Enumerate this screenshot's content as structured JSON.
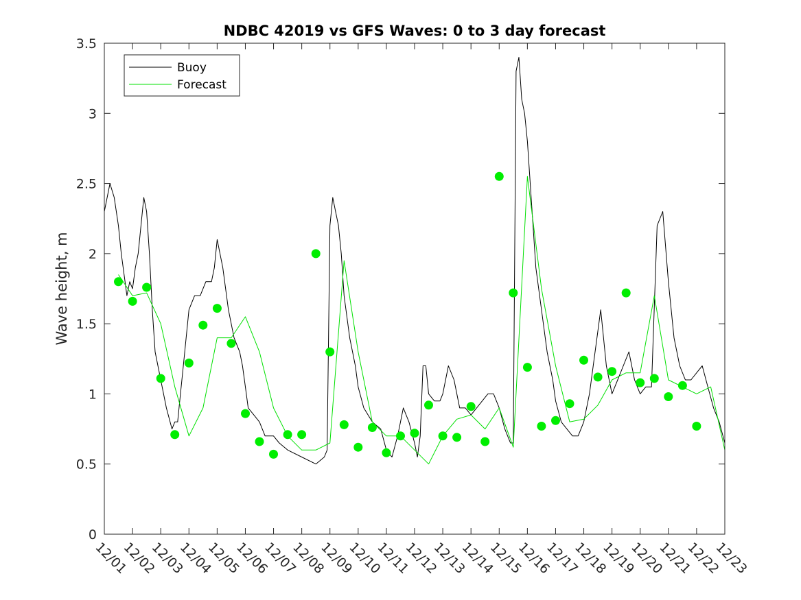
{
  "chart_data": {
    "type": "line",
    "title": "NDBC 42019 vs GFS Waves: 0 to 3 day forecast",
    "xlabel": "",
    "ylabel": "Wave height, m",
    "xlim": [
      0,
      22
    ],
    "ylim": [
      0,
      3.5
    ],
    "yticks": [
      0,
      0.5,
      1,
      1.5,
      2,
      2.5,
      3,
      3.5
    ],
    "ytick_labels": [
      "0",
      "0.5",
      "1",
      "1.5",
      "2",
      "2.5",
      "3",
      "3.5"
    ],
    "xticks": [
      0,
      1,
      2,
      3,
      4,
      5,
      6,
      7,
      8,
      9,
      10,
      11,
      12,
      13,
      14,
      15,
      16,
      17,
      18,
      19,
      20,
      21,
      22
    ],
    "xtick_labels": [
      "12/01",
      "12/02",
      "12/03",
      "12/04",
      "12/05",
      "12/06",
      "12/07",
      "12/08",
      "12/09",
      "12/10",
      "12/11",
      "12/12",
      "12/13",
      "12/14",
      "12/15",
      "12/16",
      "12/17",
      "12/18",
      "12/19",
      "12/20",
      "12/21",
      "12/22",
      "12/23"
    ],
    "legend": {
      "position": "top-left",
      "entries": [
        {
          "label": "Buoy",
          "color": "#000000"
        },
        {
          "label": "Forecast",
          "color": "#00e000"
        }
      ]
    },
    "colors": {
      "buoy": "#000000",
      "forecast": "#00e000",
      "marker": "#00ee00"
    },
    "series": [
      {
        "name": "Buoy",
        "x": [
          0,
          0.2,
          0.35,
          0.5,
          0.6,
          0.8,
          0.9,
          1.0,
          1.1,
          1.2,
          1.3,
          1.4,
          1.5,
          1.6,
          1.7,
          1.8,
          2.0,
          2.2,
          2.4,
          2.5,
          2.6,
          2.7,
          2.8,
          2.9,
          3.0,
          3.2,
          3.4,
          3.6,
          3.8,
          3.9,
          4.0,
          4.2,
          4.4,
          4.6,
          4.8,
          4.9,
          5.0,
          5.1,
          5.3,
          5.5,
          5.7,
          5.9,
          6.0,
          6.2,
          6.5,
          7.0,
          7.5,
          7.8,
          7.9,
          8.0,
          8.1,
          8.2,
          8.3,
          8.4,
          8.5,
          8.7,
          8.9,
          9.0,
          9.2,
          9.5,
          9.8,
          10.0,
          10.2,
          10.4,
          10.5,
          10.6,
          10.8,
          11.0,
          11.1,
          11.2,
          11.3,
          11.4,
          11.5,
          11.7,
          11.9,
          12.0,
          12.2,
          12.4,
          12.6,
          12.8,
          13.0,
          13.2,
          13.4,
          13.6,
          13.8,
          14.0,
          14.2,
          14.4,
          14.5,
          14.6,
          14.7,
          14.8,
          14.9,
          15.0,
          15.1,
          15.2,
          15.3,
          15.5,
          15.7,
          15.9,
          16.0,
          16.2,
          16.4,
          16.6,
          16.8,
          17.0,
          17.2,
          17.4,
          17.6,
          17.8,
          18.0,
          18.2,
          18.4,
          18.6,
          18.8,
          19.0,
          19.2,
          19.4,
          19.6,
          19.8,
          20.0,
          20.2,
          20.4,
          20.6,
          20.8,
          21.0,
          21.2,
          21.4,
          21.6,
          21.8,
          22.0
        ],
        "values": [
          2.3,
          2.5,
          2.4,
          2.2,
          2.0,
          1.7,
          1.8,
          1.75,
          1.9,
          2.0,
          2.2,
          2.4,
          2.3,
          2.0,
          1.6,
          1.3,
          1.1,
          0.9,
          0.75,
          0.8,
          0.8,
          1.0,
          1.2,
          1.4,
          1.6,
          1.7,
          1.7,
          1.8,
          1.8,
          1.9,
          2.1,
          1.9,
          1.6,
          1.4,
          1.3,
          1.2,
          1.05,
          0.9,
          0.85,
          0.8,
          0.7,
          0.7,
          0.7,
          0.65,
          0.6,
          0.55,
          0.5,
          0.55,
          0.6,
          2.2,
          2.4,
          2.3,
          2.2,
          2.0,
          1.7,
          1.4,
          1.2,
          1.05,
          0.9,
          0.8,
          0.75,
          0.6,
          0.55,
          0.7,
          0.8,
          0.9,
          0.8,
          0.65,
          0.55,
          0.7,
          1.2,
          1.2,
          1.0,
          0.95,
          0.95,
          1.0,
          1.2,
          1.1,
          0.9,
          0.9,
          0.85,
          0.9,
          0.95,
          1.0,
          1.0,
          0.9,
          0.75,
          0.65,
          0.65,
          3.3,
          3.4,
          3.1,
          3.0,
          2.8,
          2.5,
          2.2,
          1.9,
          1.6,
          1.3,
          1.1,
          0.95,
          0.8,
          0.75,
          0.7,
          0.7,
          0.8,
          1.0,
          1.3,
          1.6,
          1.2,
          1.0,
          1.1,
          1.2,
          1.3,
          1.1,
          1.0,
          1.05,
          1.05,
          2.2,
          2.3,
          1.8,
          1.4,
          1.2,
          1.1,
          1.1,
          1.15,
          1.2,
          1.05,
          0.9,
          0.8,
          0.65
        ]
      },
      {
        "name": "Forecast",
        "x": [
          0.5,
          1.0,
          1.5,
          2.0,
          2.5,
          3.0,
          3.5,
          4.0,
          4.5,
          5.0,
          5.5,
          6.0,
          6.5,
          7.0,
          7.5,
          8.0,
          8.5,
          9.0,
          9.5,
          10.0,
          10.5,
          11.0,
          11.5,
          12.0,
          12.5,
          13.0,
          13.5,
          14.0,
          14.5,
          15.0,
          15.5,
          16.0,
          16.5,
          17.0,
          17.5,
          18.0,
          18.5,
          19.0,
          19.5,
          20.0,
          20.5,
          21.0,
          21.5,
          22.0
        ],
        "values": [
          1.85,
          1.7,
          1.72,
          1.5,
          1.05,
          0.7,
          0.9,
          1.4,
          1.4,
          1.55,
          1.3,
          0.9,
          0.7,
          0.6,
          0.6,
          0.65,
          1.95,
          1.3,
          0.8,
          0.7,
          0.7,
          0.6,
          0.5,
          0.7,
          0.82,
          0.85,
          0.75,
          0.9,
          0.62,
          2.55,
          1.75,
          1.2,
          0.8,
          0.82,
          0.92,
          1.1,
          1.15,
          1.15,
          1.7,
          1.1,
          1.05,
          1.0,
          1.05,
          0.6
        ]
      }
    ],
    "markers": {
      "name": "Forecast markers",
      "x": [
        0.5,
        1.0,
        1.5,
        2.0,
        2.5,
        3.0,
        3.5,
        4.0,
        4.5,
        5.0,
        5.5,
        6.0,
        6.5,
        7.0,
        7.5,
        8.0,
        8.5,
        9.0,
        9.5,
        10.0,
        10.5,
        11.0,
        11.5,
        12.0,
        12.5,
        13.0,
        13.5,
        14.0,
        14.5,
        15.0,
        15.5,
        16.0,
        16.5,
        17.0,
        17.5,
        18.0,
        18.5,
        19.0,
        19.5,
        20.0,
        20.5,
        21.0
      ],
      "values": [
        1.8,
        1.66,
        1.76,
        1.11,
        0.71,
        1.22,
        1.49,
        1.61,
        1.36,
        0.86,
        0.66,
        0.57,
        0.71,
        0.71,
        2.0,
        1.3,
        0.78,
        0.62,
        0.76,
        0.58,
        0.7,
        0.72,
        0.92,
        0.7,
        0.69,
        0.91,
        0.66,
        2.55,
        1.72,
        1.19,
        0.77,
        0.81,
        0.93,
        1.24,
        1.12,
        1.16,
        1.72,
        1.08,
        1.11,
        0.98,
        1.06,
        0.77
      ]
    }
  }
}
